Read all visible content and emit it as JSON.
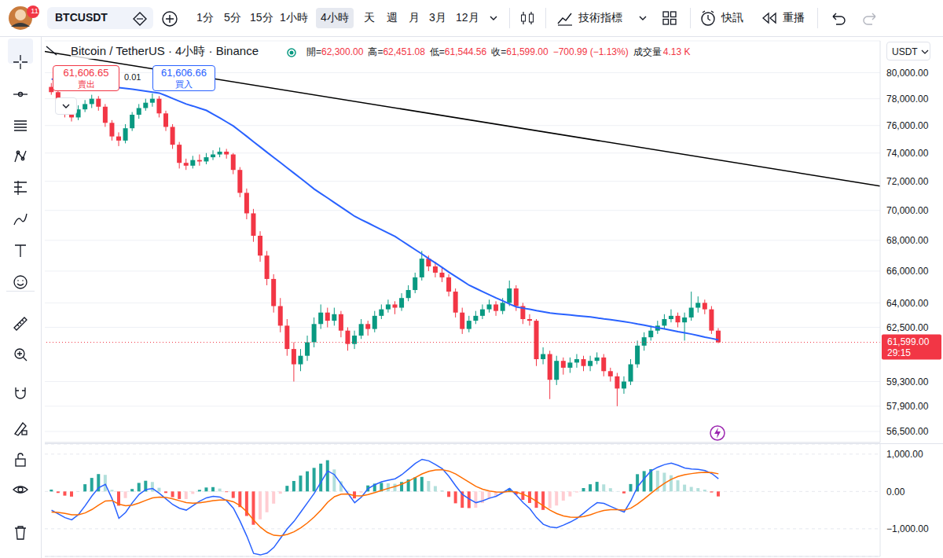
{
  "toolbar": {
    "notifications": "11",
    "symbol": "BTCUSDT",
    "intervals": [
      "1分",
      "5分",
      "15分",
      "1小時",
      "4小時",
      "天",
      "週",
      "月",
      "3月",
      "12月"
    ],
    "active_interval": "4小時",
    "indicators": "技術指標",
    "alerts": "快訊",
    "replay": "重播"
  },
  "header": {
    "title": "Bitcoin / TetherUS · 4小時 · Binance",
    "quote": [
      {
        "label": "開=",
        "value": "62,300.00"
      },
      {
        "label": "高=",
        "value": "62,451.08"
      },
      {
        "label": "低=",
        "value": "61,544.56"
      },
      {
        "label": "收=",
        "value": "61,599.00"
      }
    ],
    "change": "−700.99 (−1.13%)",
    "volume_label": "成交量",
    "volume": "4.13 K"
  },
  "trade": {
    "sell_price": "61,606.65",
    "sell": "賣出",
    "spread": "0.01",
    "buy_price": "61,606.66",
    "buy": "買入"
  },
  "chart_data": [
    {
      "type": "candlestick",
      "currency": "USDT",
      "log": "y",
      "grid": true,
      "tick_labels": "y",
      "xlim": [
        -1,
        123
      ],
      "ylim": [
        55900,
        82500
      ],
      "yticks": [
        {
          "value": 80000,
          "label": "80,000.00"
        },
        {
          "value": 78000,
          "label": "78,000.00"
        },
        {
          "value": 76000,
          "label": "76,000.00"
        },
        {
          "value": 74000,
          "label": "74,000.00"
        },
        {
          "value": 72000,
          "label": "72,000.00"
        },
        {
          "value": 70000,
          "label": "70,000.00"
        },
        {
          "value": 68000,
          "label": "68,000.00"
        },
        {
          "value": 66000,
          "label": "66,000.00"
        },
        {
          "value": 64000,
          "label": "64,000.00"
        },
        {
          "value": 62500,
          "label": "62,500.00"
        },
        {
          "value": 59300,
          "label": "59,300.00"
        },
        {
          "value": 57900,
          "label": "57,900.00"
        },
        {
          "value": 56500,
          "label": "56,500.00"
        }
      ],
      "ohlc": [
        [
          78900,
          79200,
          78300,
          78500
        ],
        [
          78500,
          78700,
          77500,
          77800
        ],
        [
          77800,
          78000,
          76600,
          77000
        ],
        [
          77000,
          77300,
          76300,
          76600
        ],
        [
          76600,
          77500,
          76400,
          77200
        ],
        [
          77200,
          77900,
          77000,
          77600
        ],
        [
          77600,
          78300,
          77300,
          78000
        ],
        [
          78000,
          78200,
          77100,
          77400
        ],
        [
          77400,
          77600,
          75900,
          76200
        ],
        [
          76200,
          76400,
          74900,
          75200
        ],
        [
          75200,
          75500,
          74500,
          74900
        ],
        [
          74900,
          76100,
          74700,
          75800
        ],
        [
          75800,
          77000,
          75600,
          76800
        ],
        [
          76800,
          77600,
          76500,
          77300
        ],
        [
          77300,
          78000,
          77100,
          77700
        ],
        [
          77700,
          78400,
          77400,
          78000
        ],
        [
          78000,
          78200,
          76600,
          76900
        ],
        [
          76900,
          77100,
          75600,
          75900
        ],
        [
          75900,
          76100,
          74300,
          74600
        ],
        [
          74600,
          74800,
          72900,
          73300
        ],
        [
          73300,
          73600,
          72800,
          73100
        ],
        [
          73100,
          73800,
          72900,
          73500
        ],
        [
          73500,
          73900,
          73100,
          73400
        ],
        [
          73400,
          74000,
          73200,
          73700
        ],
        [
          73700,
          74200,
          73500,
          73900
        ],
        [
          73900,
          74400,
          73700,
          74100
        ],
        [
          74100,
          74300,
          73600,
          73900
        ],
        [
          73900,
          74000,
          72500,
          72800
        ],
        [
          72800,
          73000,
          70900,
          71200
        ],
        [
          71200,
          71500,
          69400,
          69800
        ],
        [
          69800,
          70100,
          67900,
          68300
        ],
        [
          68300,
          68600,
          66600,
          67000
        ],
        [
          67000,
          67300,
          65100,
          65500
        ],
        [
          65500,
          65800,
          63400,
          63800
        ],
        [
          63800,
          64300,
          62200,
          62600
        ],
        [
          62600,
          63000,
          60800,
          61200
        ],
        [
          61200,
          61600,
          59300,
          60300
        ],
        [
          60300,
          61200,
          59900,
          60800
        ],
        [
          60800,
          62000,
          60500,
          61600
        ],
        [
          61600,
          63100,
          61300,
          62700
        ],
        [
          62700,
          63900,
          62400,
          63400
        ],
        [
          63400,
          63700,
          62500,
          62900
        ],
        [
          62900,
          63700,
          62600,
          63300
        ],
        [
          63300,
          63500,
          61900,
          62300
        ],
        [
          62300,
          62500,
          61100,
          61500
        ],
        [
          61500,
          62300,
          61200,
          62000
        ],
        [
          62000,
          63000,
          61800,
          62700
        ],
        [
          62700,
          62900,
          62000,
          62400
        ],
        [
          62400,
          63500,
          62200,
          63200
        ],
        [
          63200,
          63900,
          63000,
          63600
        ],
        [
          63600,
          64200,
          63400,
          63900
        ],
        [
          63900,
          64100,
          63300,
          63700
        ],
        [
          63700,
          64600,
          63500,
          64300
        ],
        [
          64300,
          65100,
          64100,
          64800
        ],
        [
          64800,
          65900,
          64600,
          65600
        ],
        [
          65600,
          67300,
          65400,
          66800
        ],
        [
          66800,
          67000,
          66000,
          66300
        ],
        [
          66300,
          66600,
          65600,
          65900
        ],
        [
          65900,
          66200,
          65300,
          65600
        ],
        [
          65600,
          65800,
          64400,
          64700
        ],
        [
          64700,
          64900,
          63100,
          63400
        ],
        [
          63400,
          63700,
          62100,
          62400
        ],
        [
          62400,
          63200,
          62200,
          62900
        ],
        [
          62900,
          63500,
          62700,
          63200
        ],
        [
          63200,
          63900,
          63000,
          63600
        ],
        [
          63600,
          64200,
          63400,
          63900
        ],
        [
          63900,
          64100,
          63200,
          63500
        ],
        [
          63500,
          64300,
          63300,
          64000
        ],
        [
          64000,
          65400,
          63800,
          64900
        ],
        [
          64900,
          65100,
          63500,
          63800
        ],
        [
          63800,
          64000,
          62700,
          63000
        ],
        [
          63000,
          63300,
          62600,
          62900
        ],
        [
          62900,
          63000,
          60200,
          60600
        ],
        [
          60600,
          61300,
          60300,
          60900
        ],
        [
          60900,
          61100,
          58300,
          59400
        ],
        [
          59400,
          60800,
          59100,
          60500
        ],
        [
          60500,
          60700,
          59700,
          60100
        ],
        [
          60100,
          60700,
          59800,
          60400
        ],
        [
          60400,
          60900,
          60100,
          60600
        ],
        [
          60600,
          60800,
          59900,
          60200
        ],
        [
          60200,
          60800,
          59900,
          60500
        ],
        [
          60500,
          61000,
          60300,
          60700
        ],
        [
          60700,
          60900,
          59600,
          59900
        ],
        [
          59900,
          60100,
          59300,
          59600
        ],
        [
          59600,
          59800,
          57900,
          58900
        ],
        [
          58900,
          59600,
          58600,
          59300
        ],
        [
          59300,
          60600,
          59100,
          60300
        ],
        [
          60300,
          61700,
          60100,
          61400
        ],
        [
          61400,
          62200,
          61100,
          61900
        ],
        [
          61900,
          62600,
          61700,
          62300
        ],
        [
          62300,
          62900,
          62100,
          62600
        ],
        [
          62600,
          63300,
          62400,
          63000
        ],
        [
          63000,
          63600,
          62800,
          63200
        ],
        [
          63200,
          63400,
          62500,
          62800
        ],
        [
          62800,
          63400,
          61700,
          63100
        ],
        [
          63100,
          64700,
          62900,
          63700
        ],
        [
          63700,
          64400,
          63400,
          64000
        ],
        [
          64000,
          64200,
          63300,
          63600
        ],
        [
          63600,
          63800,
          62100,
          62300
        ],
        [
          62300,
          62451.08,
          61544.56,
          61599
        ]
      ],
      "series": [
        {
          "type": "line",
          "color": "#2962ff",
          "values": [
            79500,
            79450,
            79400,
            79330,
            79260,
            79200,
            79130,
            79060,
            78990,
            78920,
            78850,
            78780,
            78720,
            78650,
            78580,
            78500,
            78430,
            78230,
            78020,
            77810,
            77600,
            77450,
            77280,
            77120,
            76840,
            76560,
            76260,
            75960,
            75580,
            75200,
            74810,
            74430,
            74050,
            73680,
            73310,
            72940,
            72570,
            72200,
            71830,
            71460,
            71150,
            70840,
            70530,
            70220,
            69910,
            69600,
            69370,
            69150,
            68920,
            68700,
            68470,
            68250,
            67960,
            67670,
            67380,
            67100,
            66800,
            66520,
            66230,
            65930,
            65650,
            65380,
            65100,
            64900,
            64700,
            64500,
            64300,
            64120,
            63930,
            63750,
            63670,
            63600,
            63520,
            63450,
            63370,
            63330,
            63290,
            63250,
            63210,
            63170,
            63130,
            63070,
            63010,
            62960,
            62900,
            62840,
            62780,
            62700,
            62630,
            62550,
            62470,
            62400,
            62320,
            62240,
            62170,
            62090,
            62000,
            61910,
            61830,
            61740
          ]
        },
        {
          "type": "line",
          "color": "#000000",
          "x": [
            -1,
            123
          ],
          "values": [
            81660,
            71670
          ]
        }
      ],
      "last_price": {
        "value": 61599,
        "label": "61,599.00",
        "countdown": "29:15"
      }
    },
    {
      "type": "macd",
      "grid": true,
      "tick_labels": "y",
      "xlim": [
        -1,
        123
      ],
      "ylim": [
        -1740,
        1270
      ],
      "yticks": [
        {
          "value": 1000,
          "label": "1,000.00"
        },
        {
          "value": 0,
          "label": "0.00"
        },
        {
          "value": -1000,
          "label": "−1,000.00"
        }
      ],
      "series": [
        {
          "type": "bar",
          "values": [
            50,
            -40,
            -112,
            -138,
            2,
            194,
            363,
            466,
            445,
            44,
            -381,
            -177,
            66,
            229,
            287,
            254,
            99,
            -41,
            -153,
            -202,
            -202,
            -66,
            43,
            106,
            117,
            78,
            -18,
            -174,
            -419,
            -655,
            -892,
            -746,
            -557,
            -326,
            -61,
            151,
            281,
            425,
            540,
            632,
            746,
            837,
            590,
            272,
            18,
            -186,
            -29,
            161,
            209,
            231,
            217,
            206,
            253,
            322,
            378,
            390,
            280,
            144,
            27,
            -146,
            -317,
            -438,
            -446,
            -437,
            -310,
            -192,
            -114,
            -11,
            79,
            -81,
            -225,
            -308,
            -438,
            -494,
            -451,
            -377,
            -246,
            -133,
            -26,
            91,
            193,
            258,
            190,
            88,
            6,
            -51,
            199,
            463,
            546,
            597,
            558,
            502,
            434,
            299,
            183,
            122,
            90,
            48,
            -26,
            -133
          ]
        },
        {
          "type": "line",
          "color": "#2962ff",
          "values": [
            -500,
            -600,
            -700,
            -760,
            -620,
            -380,
            -120,
            100,
            190,
            -200,
            -720,
            -560,
            -300,
            -80,
            50,
            80,
            -50,
            -200,
            -350,
            -450,
            -500,
            -380,
            -260,
            -170,
            -130,
            -150,
            -250,
            -450,
            -800,
            -1200,
            -1660,
            -1700,
            -1650,
            -1500,
            -1250,
            -1000,
            -800,
            -550,
            -300,
            -50,
            250,
            550,
            450,
            200,
            -50,
            -300,
            -150,
            80,
            180,
            260,
            300,
            340,
            450,
            600,
            750,
            860,
            820,
            720,
            610,
            400,
            150,
            -80,
            -200,
            -300,
            -250,
            -180,
            -130,
            -30,
            80,
            -100,
            -300,
            -460,
            -700,
            -880,
            -950,
            -970,
            -900,
            -820,
            -720,
            -580,
            -430,
            -300,
            -320,
            -400,
            -480,
            -550,
            -250,
            130,
            350,
            550,
            650,
            720,
            760,
            700,
            630,
            600,
            590,
            560,
            480,
            340
          ]
        },
        {
          "type": "line",
          "color": "#ff6d00",
          "values": [
            -550,
            -560,
            -588,
            -622,
            -622,
            -574,
            -483,
            -366,
            -255,
            -244,
            -339,
            -383,
            -366,
            -309,
            -237,
            -174,
            -149,
            -159,
            -197,
            -248,
            -298,
            -314,
            -303,
            -276,
            -247,
            -228,
            -232,
            -276,
            -381,
            -545,
            -768,
            -954,
            -1093,
            -1174,
            -1189,
            -1151,
            -1081,
            -975,
            -840,
            -682,
            -496,
            -287,
            -140,
            -72,
            -68,
            -114,
            -121,
            -81,
            -29,
            29,
            83,
            134,
            197,
            278,
            372,
            470,
            540,
            576,
            583,
            546,
            467,
            358,
            246,
            137,
            60,
            12,
            -16,
            -19,
            1,
            -19,
            -75,
            -152,
            -262,
            -386,
            -499,
            -593,
            -654,
            -687,
            -694,
            -671,
            -623,
            -558,
            -510,
            -488,
            -486,
            -499,
            -449,
            -333,
            -196,
            -47,
            92,
            218,
            326,
            401,
            447,
            478,
            500,
            512,
            506,
            473
          ]
        }
      ]
    }
  ]
}
